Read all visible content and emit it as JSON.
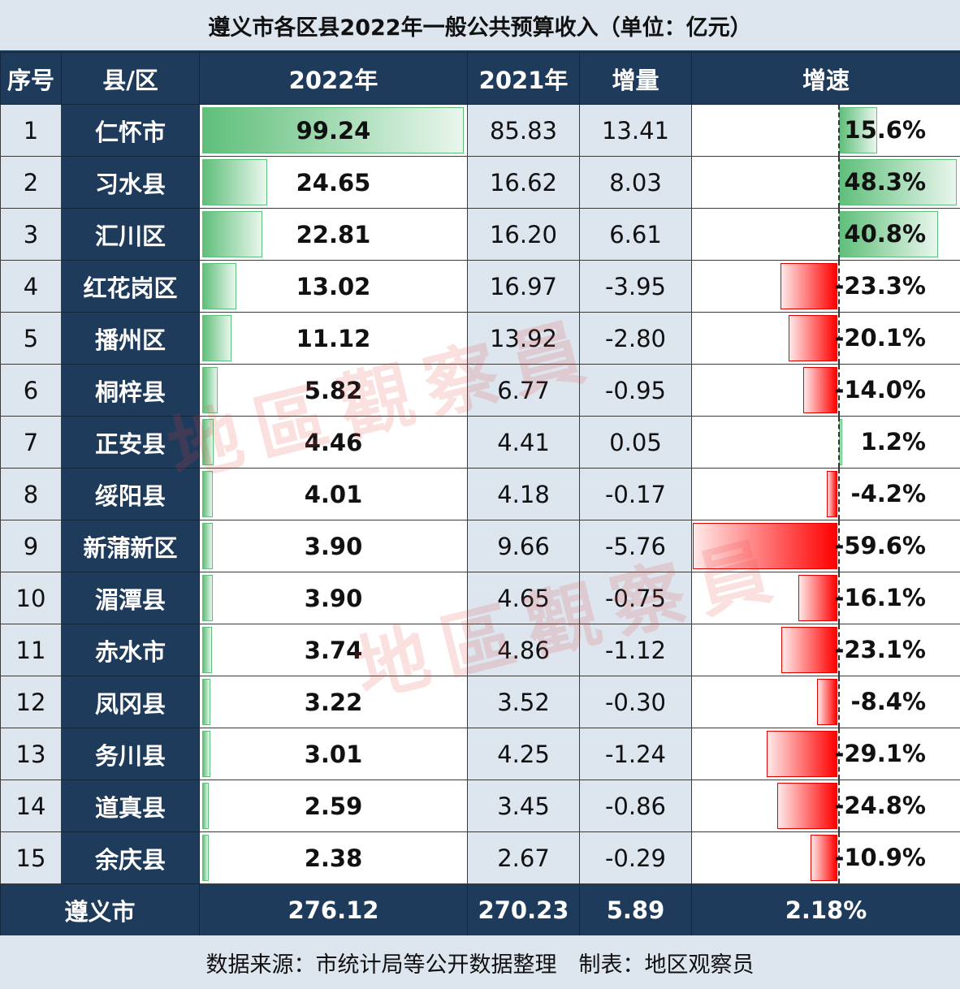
{
  "title": "遵义市各区县2022年一般公共预算收入（单位：亿元）",
  "headers": {
    "no": "序号",
    "name": "县/区",
    "y2022": "2022年",
    "y2021": "2021年",
    "increase": "增量",
    "rate": "增速"
  },
  "rows": [
    {
      "no": "1",
      "name": "仁怀市",
      "y2022": "99.24",
      "y2021": "85.83",
      "increase": "13.41",
      "rate": "15.6%",
      "v2022": 99.24,
      "rate_value": 15.6
    },
    {
      "no": "2",
      "name": "习水县",
      "y2022": "24.65",
      "y2021": "16.62",
      "increase": "8.03",
      "rate": "48.3%",
      "v2022": 24.65,
      "rate_value": 48.3
    },
    {
      "no": "3",
      "name": "汇川区",
      "y2022": "22.81",
      "y2021": "16.20",
      "increase": "6.61",
      "rate": "40.8%",
      "v2022": 22.81,
      "rate_value": 40.8
    },
    {
      "no": "4",
      "name": "红花岗区",
      "y2022": "13.02",
      "y2021": "16.97",
      "increase": "-3.95",
      "rate": "-23.3%",
      "v2022": 13.02,
      "rate_value": -23.3
    },
    {
      "no": "5",
      "name": "播州区",
      "y2022": "11.12",
      "y2021": "13.92",
      "increase": "-2.80",
      "rate": "-20.1%",
      "v2022": 11.12,
      "rate_value": -20.1
    },
    {
      "no": "6",
      "name": "桐梓县",
      "y2022": "5.82",
      "y2021": "6.77",
      "increase": "-0.95",
      "rate": "-14.0%",
      "v2022": 5.82,
      "rate_value": -14.0
    },
    {
      "no": "7",
      "name": "正安县",
      "y2022": "4.46",
      "y2021": "4.41",
      "increase": "0.05",
      "rate": "1.2%",
      "v2022": 4.46,
      "rate_value": 1.2
    },
    {
      "no": "8",
      "name": "绥阳县",
      "y2022": "4.01",
      "y2021": "4.18",
      "increase": "-0.17",
      "rate": "-4.2%",
      "v2022": 4.01,
      "rate_value": -4.2
    },
    {
      "no": "9",
      "name": "新蒲新区",
      "y2022": "3.90",
      "y2021": "9.66",
      "increase": "-5.76",
      "rate": "-59.6%",
      "v2022": 3.9,
      "rate_value": -59.6
    },
    {
      "no": "10",
      "name": "湄潭县",
      "y2022": "3.90",
      "y2021": "4.65",
      "increase": "-0.75",
      "rate": "-16.1%",
      "v2022": 3.9,
      "rate_value": -16.1
    },
    {
      "no": "11",
      "name": "赤水市",
      "y2022": "3.74",
      "y2021": "4.86",
      "increase": "-1.12",
      "rate": "-23.1%",
      "v2022": 3.74,
      "rate_value": -23.1
    },
    {
      "no": "12",
      "name": "凤冈县",
      "y2022": "3.22",
      "y2021": "3.52",
      "increase": "-0.30",
      "rate": "-8.4%",
      "v2022": 3.22,
      "rate_value": -8.4
    },
    {
      "no": "13",
      "name": "务川县",
      "y2022": "3.01",
      "y2021": "4.25",
      "increase": "-1.24",
      "rate": "-29.1%",
      "v2022": 3.01,
      "rate_value": -29.1
    },
    {
      "no": "14",
      "name": "道真县",
      "y2022": "2.59",
      "y2021": "3.45",
      "increase": "-0.86",
      "rate": "-24.8%",
      "v2022": 2.59,
      "rate_value": -24.8
    },
    {
      "no": "15",
      "name": "余庆县",
      "y2022": "2.38",
      "y2021": "2.67",
      "increase": "-0.29",
      "rate": "-10.9%",
      "v2022": 2.38,
      "rate_value": -10.9
    }
  ],
  "total": {
    "name": "遵义市",
    "y2022": "276.12",
    "y2021": "270.23",
    "increase": "5.89",
    "rate": "2.18%"
  },
  "footer": "数据来源：市统计局等公开数据整理　制表：地区观察员",
  "watermark": "地區觀察員",
  "colors": {
    "header_bg": "#1f3b5c",
    "light_bg": "#dde5ee",
    "positive_bar": "#5fbf7a",
    "negative_bar": "#ff0000"
  }
}
